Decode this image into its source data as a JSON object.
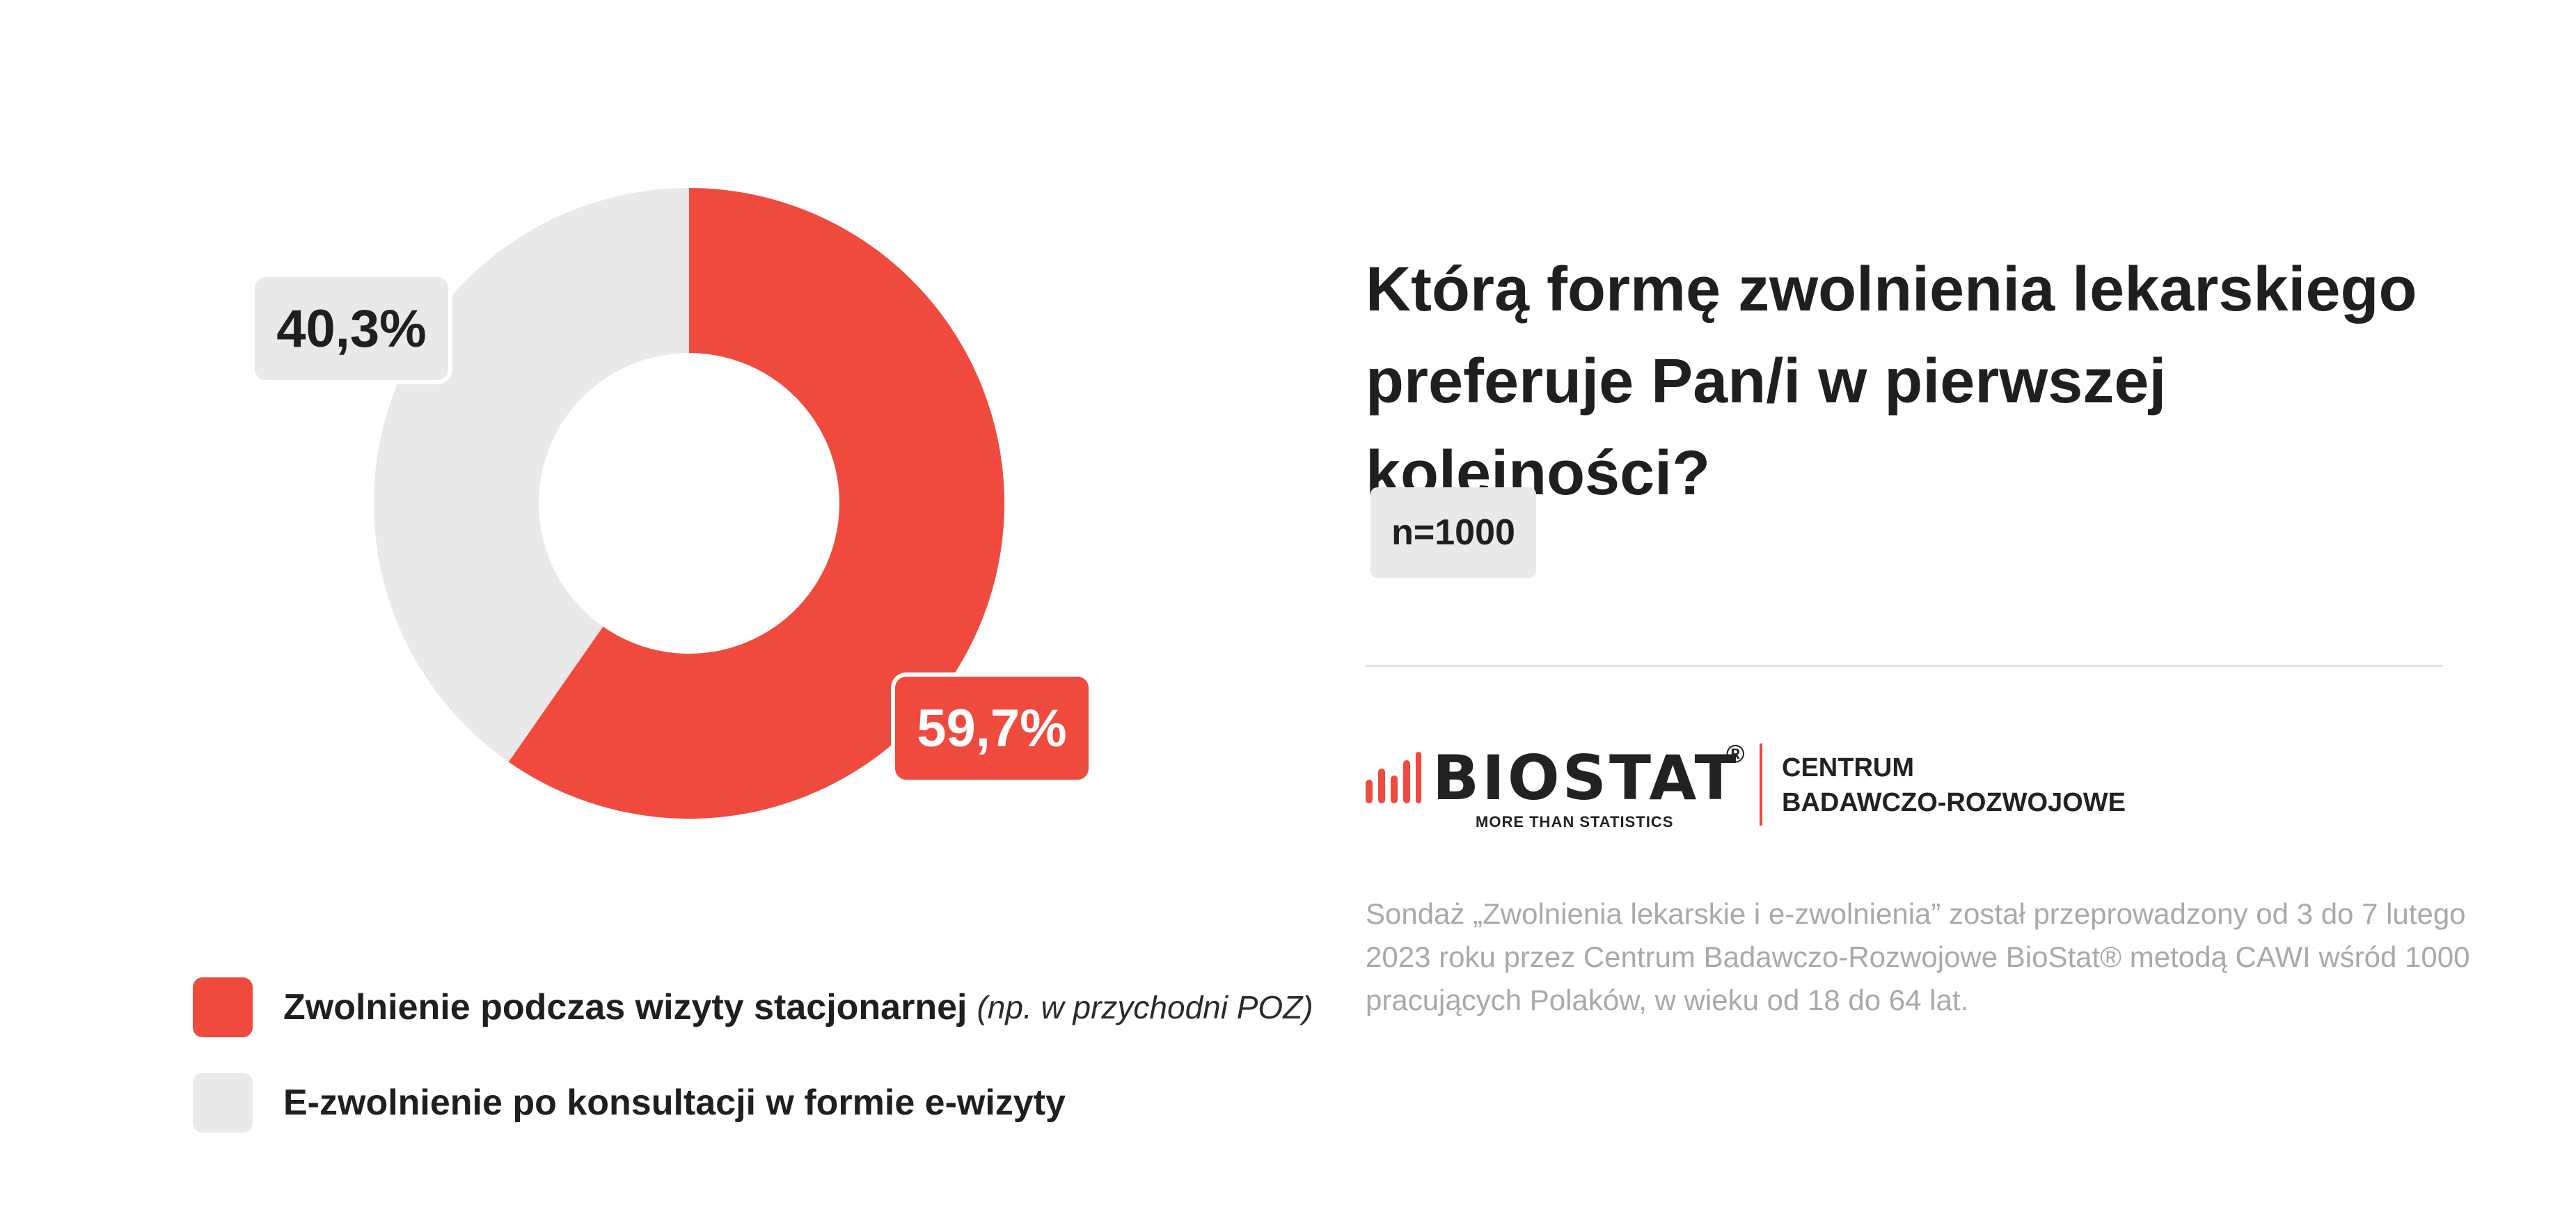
{
  "chart_data": {
    "type": "pie",
    "donut": true,
    "slices": [
      {
        "name": "Zwolnienie podczas wizyty stacjonarnej",
        "value": 59.7,
        "label": "59,7%",
        "color": "#f04a3f"
      },
      {
        "name": "E-zwolnienie po konsultacji w formie e-wizyty",
        "value": 40.3,
        "label": "40,3%",
        "color": "#e9e9e9"
      }
    ],
    "legend_placement": "bottom-left"
  },
  "legend": {
    "items": [
      {
        "label": "Zwolnienie podczas wizyty stacjonarnej",
        "note": "(np. w przychodni POZ)",
        "color": "#f04a3f"
      },
      {
        "label": "E-zwolnienie po konsultacji w formie e-wizyty",
        "note": "",
        "color": "#e9e9e9"
      }
    ]
  },
  "question": {
    "line1": "Którą formę zwolnienia lekarskiego",
    "line2": "preferuje Pan/i w pierwszej kolejności?"
  },
  "sample": {
    "label": "n=1000"
  },
  "logo": {
    "name": "BIOSTAT",
    "registered": "®",
    "tagline": "MORE THAN STATISTICS",
    "org_line1": "CENTRUM",
    "org_line2": "BADAWCZO-ROZWOJOWE",
    "brand_color": "#f04a3f",
    "icon": "bar-signal-icon"
  },
  "footnote": {
    "text": "Sondaż „Zwolnienia lekarskie i e-zwolnienia” został przeprowadzony od 3 do 7 lutego 2023 roku przez Centrum Badawczo-Rozwojowe BioStat® metodą CAWI wśród 1000 pracujących Polaków, w wieku od 18 do 64 lat."
  }
}
